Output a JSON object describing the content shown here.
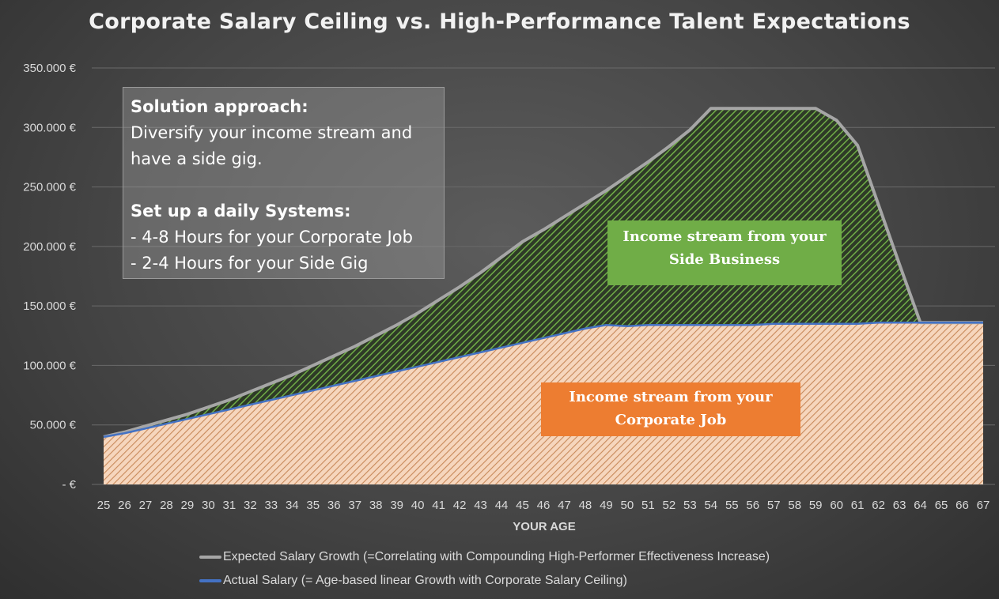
{
  "chart_data": {
    "type": "area",
    "title": "Corporate Salary Ceiling vs. High-Performance Talent Expectations",
    "xlabel": "YOUR AGE",
    "ylabel": "",
    "x": [
      25,
      26,
      27,
      28,
      29,
      30,
      31,
      32,
      33,
      34,
      35,
      36,
      37,
      38,
      39,
      40,
      41,
      42,
      43,
      44,
      45,
      46,
      47,
      48,
      49,
      50,
      51,
      52,
      53,
      54,
      55,
      56,
      57,
      58,
      59,
      60,
      61,
      62,
      63,
      64,
      65,
      66,
      67
    ],
    "ylim": [
      0,
      350000
    ],
    "y_ticks": [
      "-  €",
      "50.000 €",
      "100.000 €",
      "150.000 €",
      "200.000 €",
      "250.000 €",
      "300.000 €",
      "350.000 €"
    ],
    "y_tick_values": [
      0,
      50000,
      100000,
      150000,
      200000,
      250000,
      300000,
      350000
    ],
    "grid": true,
    "legend_position": "bottom",
    "series": [
      {
        "name": "Expected Salary Growth (=Correlating with Compounding High-Performer Effectiveness Increase)",
        "color": "#a6a6a6",
        "values": [
          40000,
          44000,
          49000,
          54000,
          59000,
          65000,
          71000,
          78000,
          85000,
          92000,
          100000,
          108000,
          116000,
          125000,
          134000,
          144000,
          155000,
          166000,
          178000,
          191000,
          204000,
          214000,
          225000,
          236000,
          247000,
          259000,
          271000,
          284000,
          298000,
          316000,
          316000,
          316000,
          316000,
          316000,
          316000,
          306000,
          285000,
          235000,
          185000,
          136000,
          136000,
          136000,
          136000
        ]
      },
      {
        "name": "Actual Salary (= Age-based linear Growth with Corporate Salary Ceiling)",
        "color": "#4472c4",
        "values": [
          40000,
          43000,
          47000,
          51000,
          55000,
          59000,
          63000,
          67000,
          71000,
          75000,
          79000,
          83000,
          87000,
          91000,
          95000,
          99000,
          103000,
          107000,
          111000,
          115000,
          119000,
          123000,
          127000,
          131000,
          134000,
          133000,
          134000,
          134000,
          134000,
          134000,
          134000,
          134000,
          135000,
          135000,
          135000,
          135000,
          135000,
          136000,
          136000,
          136000,
          136000,
          136000,
          136000
        ]
      }
    ],
    "areas": [
      {
        "label": "Income stream from your Side Business",
        "color": "#70ad47"
      },
      {
        "label": "Income stream from your Corporate Job",
        "color": "#ed7d31"
      }
    ]
  },
  "note": {
    "heading1": "Solution approach:",
    "line1": "Diversify your income stream and",
    "line2": "have a side gig.",
    "heading2": "Set up a daily Systems:",
    "line3": "- 4-8 Hours for your Corporate Job",
    "line4": "- 2-4 Hours for your Side Gig"
  },
  "callouts": {
    "side_business_line1": "Income stream from your",
    "side_business_line2": "Side Business",
    "corporate_line1": "Income stream from your",
    "corporate_line2": "Corporate Job"
  }
}
